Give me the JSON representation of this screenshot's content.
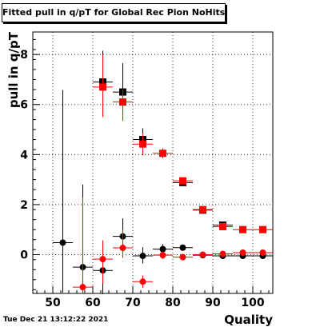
{
  "title": "Fitted pull in q/pT for Global Rec Pion NoHits",
  "timestamp": "Tue Dec 21 13:12:22 2021",
  "chart_data": {
    "type": "scatter",
    "title": "Fitted pull in q/pT for Global Rec Pion NoHits",
    "xlabel": "Quality",
    "ylabel": "pull in q/pT",
    "xlim": [
      45,
      105
    ],
    "ylim": [
      -1.55,
      8.9
    ],
    "xticks": [
      50,
      60,
      70,
      80,
      90,
      100
    ],
    "yticks": [
      0,
      2,
      4,
      6,
      8
    ],
    "grid": true,
    "series": [
      {
        "color": "#000000",
        "marker": "mixed",
        "points": [
          {
            "x": 52.5,
            "y": 0.48,
            "yerr_lo": 2.0,
            "yerr_hi": 6.1,
            "xerr": 2.5,
            "marker": "circle"
          },
          {
            "x": 57.5,
            "y": -0.5,
            "yerr_lo": 1.05,
            "yerr_hi": 3.3,
            "xerr": 2.5,
            "marker": "circle"
          },
          {
            "x": 62.5,
            "y": -0.63,
            "yerr_lo": 0.95,
            "yerr_hi": 0.95,
            "xerr": 2.5,
            "marker": "circle"
          },
          {
            "x": 67.5,
            "y": 0.73,
            "yerr_lo": 0.6,
            "yerr_hi": 0.72,
            "xerr": 2.5,
            "marker": "circle"
          },
          {
            "x": 72.5,
            "y": -0.05,
            "yerr_lo": 0.3,
            "yerr_hi": 0.35,
            "xerr": 2.5,
            "marker": "circle"
          },
          {
            "x": 77.5,
            "y": 0.22,
            "yerr_lo": 0.2,
            "yerr_hi": 0.2,
            "xerr": 2.5,
            "marker": "circle"
          },
          {
            "x": 82.5,
            "y": 0.28,
            "yerr_lo": 0.12,
            "yerr_hi": 0.12,
            "xerr": 2.5,
            "marker": "circle"
          },
          {
            "x": 62.5,
            "y": 6.9,
            "yerr_lo": 1.35,
            "yerr_hi": 1.25,
            "xerr": 2.5,
            "marker": "square"
          },
          {
            "x": 67.5,
            "y": 6.5,
            "yerr_lo": 1.05,
            "yerr_hi": 1.15,
            "xerr": 2.5,
            "marker": "square"
          },
          {
            "x": 72.5,
            "y": 4.6,
            "yerr_lo": 0.4,
            "yerr_hi": 0.45,
            "xerr": 2.5,
            "marker": "square"
          },
          {
            "x": 82.5,
            "y": 2.88,
            "yerr_lo": 0.12,
            "yerr_hi": 0.12,
            "xerr": 2.5,
            "marker": "square"
          },
          {
            "x": 87.5,
            "y": 1.78,
            "yerr_lo": 0.08,
            "yerr_hi": 0.08,
            "xerr": 2.5,
            "marker": "square"
          },
          {
            "x": 92.5,
            "y": 1.18,
            "yerr_lo": 0.06,
            "yerr_hi": 0.06,
            "xerr": 2.5,
            "marker": "square"
          },
          {
            "x": 87.5,
            "y": -0.02,
            "yerr_lo": 0.03,
            "yerr_hi": 0.03,
            "xerr": 2.5,
            "marker": "circle"
          },
          {
            "x": 92.5,
            "y": -0.05,
            "yerr_lo": 0.03,
            "yerr_hi": 0.03,
            "xerr": 2.5,
            "marker": "circle"
          },
          {
            "x": 97.5,
            "y": -0.05,
            "yerr_lo": 0.03,
            "yerr_hi": 0.03,
            "xerr": 2.5,
            "marker": "circle"
          },
          {
            "x": 102.5,
            "y": -0.05,
            "yerr_lo": 0.03,
            "yerr_hi": 0.03,
            "xerr": 2.5,
            "marker": "circle"
          }
        ]
      },
      {
        "color": "#ff0000",
        "marker": "mixed",
        "points": [
          {
            "x": 57.5,
            "y": -1.3,
            "yerr_lo": 0.25,
            "yerr_hi": 3.6,
            "xerr": 2.5,
            "marker": "circle"
          },
          {
            "x": 62.5,
            "y": -0.18,
            "yerr_lo": 1.0,
            "yerr_hi": 0.75,
            "xerr": 2.5,
            "marker": "circle"
          },
          {
            "x": 67.5,
            "y": 0.27,
            "yerr_lo": 0.4,
            "yerr_hi": 0.75,
            "xerr": 2.5,
            "marker": "circle"
          },
          {
            "x": 72.5,
            "y": -1.08,
            "yerr_lo": 0.25,
            "yerr_hi": 0.25,
            "xerr": 2.5,
            "marker": "circle"
          },
          {
            "x": 77.5,
            "y": -0.02,
            "yerr_lo": 0.15,
            "yerr_hi": 0.15,
            "xerr": 2.5,
            "marker": "circle"
          },
          {
            "x": 82.5,
            "y": -0.1,
            "yerr_lo": 0.08,
            "yerr_hi": 0.08,
            "xerr": 2.5,
            "marker": "circle"
          },
          {
            "x": 87.5,
            "y": 0.0,
            "yerr_lo": 0.04,
            "yerr_hi": 0.04,
            "xerr": 2.5,
            "marker": "circle"
          },
          {
            "x": 92.5,
            "y": 0.03,
            "yerr_lo": 0.03,
            "yerr_hi": 0.03,
            "xerr": 2.5,
            "marker": "circle"
          },
          {
            "x": 97.5,
            "y": 0.08,
            "yerr_lo": 0.03,
            "yerr_hi": 0.03,
            "xerr": 2.5,
            "marker": "circle"
          },
          {
            "x": 102.5,
            "y": 0.08,
            "yerr_lo": 0.03,
            "yerr_hi": 0.03,
            "xerr": 2.5,
            "marker": "circle"
          },
          {
            "x": 62.5,
            "y": 6.7,
            "yerr_lo": 1.2,
            "yerr_hi": 1.3,
            "xerr": 2.5,
            "marker": "square"
          },
          {
            "x": 67.5,
            "y": 6.1,
            "yerr_lo": 0.75,
            "yerr_hi": 0.5,
            "xerr": 2.5,
            "marker": "square"
          },
          {
            "x": 72.5,
            "y": 4.42,
            "yerr_lo": 0.45,
            "yerr_hi": 0.45,
            "xerr": 2.5,
            "marker": "square"
          },
          {
            "x": 77.5,
            "y": 4.05,
            "yerr_lo": 0.2,
            "yerr_hi": 0.2,
            "xerr": 2.5,
            "marker": "square"
          },
          {
            "x": 82.5,
            "y": 2.95,
            "yerr_lo": 0.12,
            "yerr_hi": 0.12,
            "xerr": 2.5,
            "marker": "square"
          },
          {
            "x": 87.5,
            "y": 1.8,
            "yerr_lo": 0.08,
            "yerr_hi": 0.08,
            "xerr": 2.5,
            "marker": "square"
          },
          {
            "x": 92.5,
            "y": 1.12,
            "yerr_lo": 0.05,
            "yerr_hi": 0.05,
            "xerr": 2.5,
            "marker": "square"
          },
          {
            "x": 97.5,
            "y": 1.0,
            "yerr_lo": 0.04,
            "yerr_hi": 0.04,
            "xerr": 2.5,
            "marker": "square"
          },
          {
            "x": 102.5,
            "y": 1.0,
            "yerr_lo": 0.04,
            "yerr_hi": 0.04,
            "xerr": 2.5,
            "marker": "square"
          }
        ]
      }
    ]
  }
}
